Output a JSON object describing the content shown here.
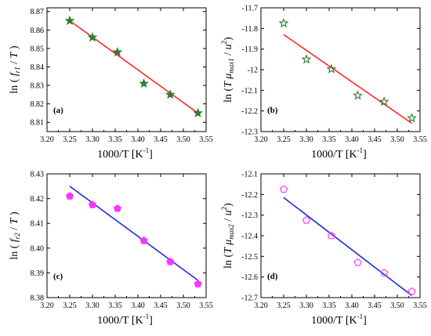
{
  "chart_data": [
    {
      "id": "a",
      "type": "scatter",
      "panel_label": "(a)",
      "ylabel_tex": [
        "ln ( ",
        "f",
        "r1",
        " / ",
        "T",
        " )"
      ],
      "xlabel": "1000/T",
      "xunit": "[K",
      "xunit_sup": "-1",
      "xunit_close": "]",
      "xlim": [
        3.2,
        3.55
      ],
      "ylim": [
        8.805,
        8.872
      ],
      "xticks": [
        "3.20",
        "3.25",
        "3.30",
        "3.35",
        "3.40",
        "3.45",
        "3.50",
        "3.55"
      ],
      "yticks": [
        "8.81",
        "8.82",
        "8.83",
        "8.84",
        "8.85",
        "8.86",
        "8.87"
      ],
      "marker": "star-filled",
      "marker_color": "#2e7d32",
      "fit_color": "#ff2a2a",
      "points": [
        {
          "x": 3.25,
          "y": 8.865
        },
        {
          "x": 3.3,
          "y": 8.856
        },
        {
          "x": 3.355,
          "y": 8.848
        },
        {
          "x": 3.413,
          "y": 8.831
        },
        {
          "x": 3.471,
          "y": 8.825
        },
        {
          "x": 3.532,
          "y": 8.815
        }
      ],
      "fit": [
        {
          "x": 3.25,
          "y": 8.865
        },
        {
          "x": 3.532,
          "y": 8.815
        }
      ]
    },
    {
      "id": "b",
      "type": "scatter",
      "panel_label": "(b)",
      "ylabel_tex": [
        "ln (",
        "T",
        " μ",
        "max1",
        " / ",
        "u",
        "2",
        ")"
      ],
      "xlabel": "1000/T",
      "xunit": "[K",
      "xunit_sup": "-1",
      "xunit_close": "]",
      "xlim": [
        3.2,
        3.55
      ],
      "ylim": [
        -12.3,
        -11.7
      ],
      "xticks": [
        "3.20",
        "3.25",
        "3.30",
        "3.35",
        "3.40",
        "3.45",
        "3.50",
        "3.55"
      ],
      "yticks": [
        "-11.7",
        "-11.8",
        "-11.9",
        "-12",
        "-12.1",
        "-12.2",
        "-12.3"
      ],
      "ytick_values": [
        -11.7,
        -11.8,
        -11.9,
        -12.0,
        -12.1,
        -12.2,
        -12.3
      ],
      "marker": "star-open",
      "marker_color": "#2e7d32",
      "fit_color": "#ff2a2a",
      "points": [
        {
          "x": 3.25,
          "y": -11.775
        },
        {
          "x": 3.3,
          "y": -11.95
        },
        {
          "x": 3.355,
          "y": -11.997
        },
        {
          "x": 3.413,
          "y": -12.125
        },
        {
          "x": 3.471,
          "y": -12.155
        },
        {
          "x": 3.532,
          "y": -12.235
        }
      ],
      "fit": [
        {
          "x": 3.25,
          "y": -11.83
        },
        {
          "x": 3.532,
          "y": -12.26
        }
      ]
    },
    {
      "id": "c",
      "type": "scatter",
      "panel_label": "(c)",
      "ylabel_tex": [
        "ln ( ",
        "f",
        "r2",
        " / ",
        "T",
        " )"
      ],
      "xlabel": "1000/T",
      "xunit": "[K",
      "xunit_sup": "-1",
      "xunit_close": "]",
      "xlim": [
        3.2,
        3.55
      ],
      "ylim": [
        8.38,
        8.43
      ],
      "xticks": [
        "3.20",
        "3.25",
        "3.30",
        "3.35",
        "3.40",
        "3.45",
        "3.50",
        "3.55"
      ],
      "yticks": [
        "8.38",
        "8.39",
        "8.40",
        "8.41",
        "8.42",
        "8.43"
      ],
      "marker": "pentagon-filled",
      "marker_color": "#ff33ff",
      "fit_color": "#1f2ed6",
      "points": [
        {
          "x": 3.25,
          "y": 8.421
        },
        {
          "x": 3.3,
          "y": 8.4175
        },
        {
          "x": 3.355,
          "y": 8.416
        },
        {
          "x": 3.413,
          "y": 8.403
        },
        {
          "x": 3.471,
          "y": 8.3945
        },
        {
          "x": 3.532,
          "y": 8.3855
        }
      ],
      "fit": [
        {
          "x": 3.25,
          "y": 8.425
        },
        {
          "x": 3.532,
          "y": 8.387
        }
      ]
    },
    {
      "id": "d",
      "type": "scatter",
      "panel_label": "(d)",
      "ylabel_tex": [
        "ln (",
        "T",
        " μ",
        "max2",
        " / ",
        "u",
        "2",
        ")"
      ],
      "xlabel": "1000/T",
      "xunit": "[K",
      "xunit_sup": "-1",
      "xunit_close": "]",
      "xlim": [
        3.2,
        3.55
      ],
      "ylim": [
        -12.7,
        -12.1
      ],
      "xticks": [
        "3.20",
        "3.25",
        "3.30",
        "3.35",
        "3.40",
        "3.45",
        "3.50",
        "3.55"
      ],
      "yticks": [
        "-12.1",
        "-12.2",
        "-12.3",
        "-12.4",
        "-12.5",
        "-12.6",
        "-12.7"
      ],
      "ytick_values": [
        -12.1,
        -12.2,
        -12.3,
        -12.4,
        -12.5,
        -12.6,
        -12.7
      ],
      "marker": "pentagon-open",
      "marker_color": "#ff33ff",
      "fit_color": "#1f2ed6",
      "points": [
        {
          "x": 3.25,
          "y": -12.175
        },
        {
          "x": 3.3,
          "y": -12.325
        },
        {
          "x": 3.355,
          "y": -12.4
        },
        {
          "x": 3.413,
          "y": -12.53
        },
        {
          "x": 3.471,
          "y": -12.58
        },
        {
          "x": 3.532,
          "y": -12.67
        }
      ],
      "fit": [
        {
          "x": 3.25,
          "y": -12.215
        },
        {
          "x": 3.532,
          "y": -12.69
        }
      ]
    }
  ]
}
